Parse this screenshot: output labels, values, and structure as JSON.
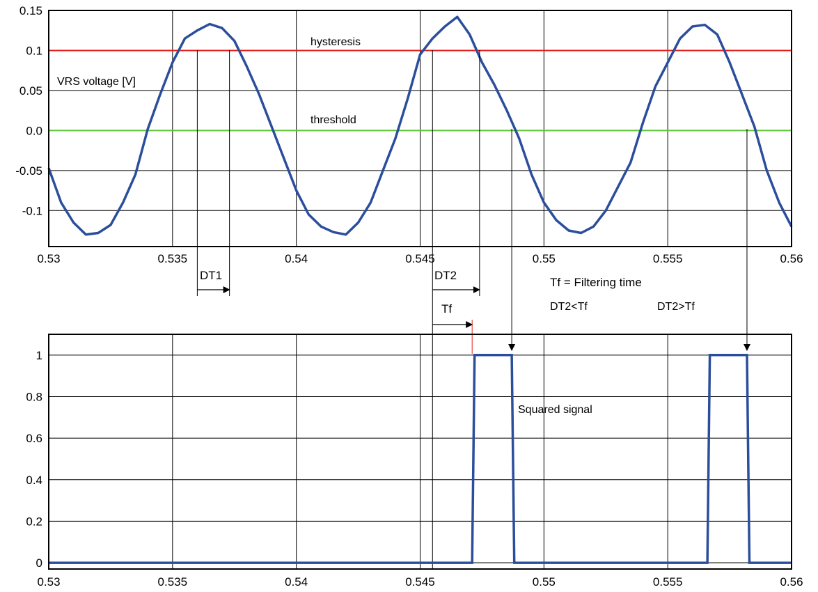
{
  "colors": {
    "signal": "#2b4e9c",
    "hysteresis": "#e3211c",
    "threshold": "#5ec43a",
    "grid": "#000000",
    "tf_marker": "#e3211c"
  },
  "chart_data": [
    {
      "type": "line",
      "panel": "top",
      "xlim": [
        0.53,
        0.56
      ],
      "ylim": [
        -0.145,
        0.15
      ],
      "grid": true,
      "x_ticks": [
        0.53,
        0.535,
        0.54,
        0.545,
        0.55,
        0.555,
        0.56
      ],
      "x_tick_labels": [
        "0.53",
        "0.535",
        "0.54",
        "0.545",
        "0.55",
        "0.555",
        "0.56"
      ],
      "y_ticks": [
        0.15,
        0.1,
        0.05,
        0.0,
        -0.05,
        -0.1
      ],
      "y_tick_labels": [
        "0.15",
        "0.1",
        "0.05",
        "0.0",
        "-0.05",
        "-0.1"
      ],
      "series": [
        {
          "name": "VRS voltage [V]",
          "x": [
            0.53,
            0.5305,
            0.531,
            0.5315,
            0.532,
            0.5325,
            0.533,
            0.5335,
            0.534,
            0.5345,
            0.535,
            0.5355,
            0.536,
            0.5365,
            0.537,
            0.5375,
            0.538,
            0.5385,
            0.539,
            0.5395,
            0.54,
            0.5405,
            0.541,
            0.5415,
            0.542,
            0.5425,
            0.543,
            0.5435,
            0.544,
            0.5445,
            0.545,
            0.5455,
            0.546,
            0.5465,
            0.547,
            0.5475,
            0.548,
            0.5485,
            0.549,
            0.5495,
            0.55,
            0.5505,
            0.551,
            0.5515,
            0.552,
            0.5525,
            0.553,
            0.5535,
            0.554,
            0.5545,
            0.555,
            0.5555,
            0.556,
            0.5565,
            0.557,
            0.5575,
            0.558,
            0.5585,
            0.559,
            0.5595,
            0.56
          ],
          "y": [
            -0.047,
            -0.09,
            -0.115,
            -0.13,
            -0.128,
            -0.118,
            -0.09,
            -0.055,
            0.002,
            0.045,
            0.085,
            0.115,
            0.125,
            0.133,
            0.128,
            0.112,
            0.08,
            0.045,
            0.005,
            -0.035,
            -0.075,
            -0.105,
            -0.12,
            -0.127,
            -0.13,
            -0.115,
            -0.09,
            -0.05,
            -0.01,
            0.04,
            0.095,
            0.115,
            0.13,
            0.142,
            0.12,
            0.085,
            0.057,
            0.025,
            -0.01,
            -0.055,
            -0.09,
            -0.112,
            -0.125,
            -0.128,
            -0.12,
            -0.1,
            -0.07,
            -0.04,
            0.01,
            0.055,
            0.085,
            0.115,
            0.13,
            0.132,
            0.12,
            0.085,
            0.045,
            0.005,
            -0.05,
            -0.09,
            -0.12
          ]
        },
        {
          "name": "hysteresis",
          "x": [
            0.53,
            0.56
          ],
          "y": [
            0.1,
            0.1
          ]
        },
        {
          "name": "threshold",
          "x": [
            0.53,
            0.56
          ],
          "y": [
            0.0,
            0.0
          ]
        }
      ],
      "annotations": {
        "vrs_label": "VRS voltage [V]",
        "hysteresis_label": "hysteresis",
        "threshold_label": "threshold"
      }
    },
    {
      "type": "line",
      "panel": "bottom",
      "xlim": [
        0.53,
        0.56
      ],
      "ylim": [
        -0.03,
        1.1
      ],
      "grid": true,
      "x_ticks": [
        0.53,
        0.535,
        0.54,
        0.545,
        0.55,
        0.555,
        0.56
      ],
      "x_tick_labels": [
        "0.53",
        "0.535",
        "0.54",
        "0.545",
        "0.55",
        "0.555",
        "0.56"
      ],
      "y_ticks": [
        1,
        0.8,
        0.6,
        0.4,
        0.2,
        0
      ],
      "y_tick_labels": [
        "1",
        "0.8",
        "0.6",
        "0.4",
        "0.2",
        "0"
      ],
      "series": [
        {
          "name": "Squared signal",
          "x": [
            0.53,
            0.5471,
            0.5472,
            0.5487,
            0.5488,
            0.5566,
            0.5567,
            0.5582,
            0.5583,
            0.56
          ],
          "y": [
            0,
            0,
            1,
            1,
            0,
            0,
            1,
            1,
            0,
            0
          ]
        }
      ],
      "annotations": {
        "squared_label": "Squared signal"
      }
    }
  ],
  "markers": {
    "dt1": {
      "label": "DT1",
      "start": 0.536,
      "end": 0.5373
    },
    "dt2": {
      "label": "DT2",
      "start": 0.5455,
      "end": 0.5474
    },
    "tf": {
      "label": "Tf",
      "start": 0.5455,
      "end": 0.5471
    },
    "crossing_arrows": [
      0.5487,
      0.5582
    ],
    "tf_definition": "Tf = Filtering time",
    "case1": "DT2<Tf",
    "case2": "DT2>Tf"
  }
}
